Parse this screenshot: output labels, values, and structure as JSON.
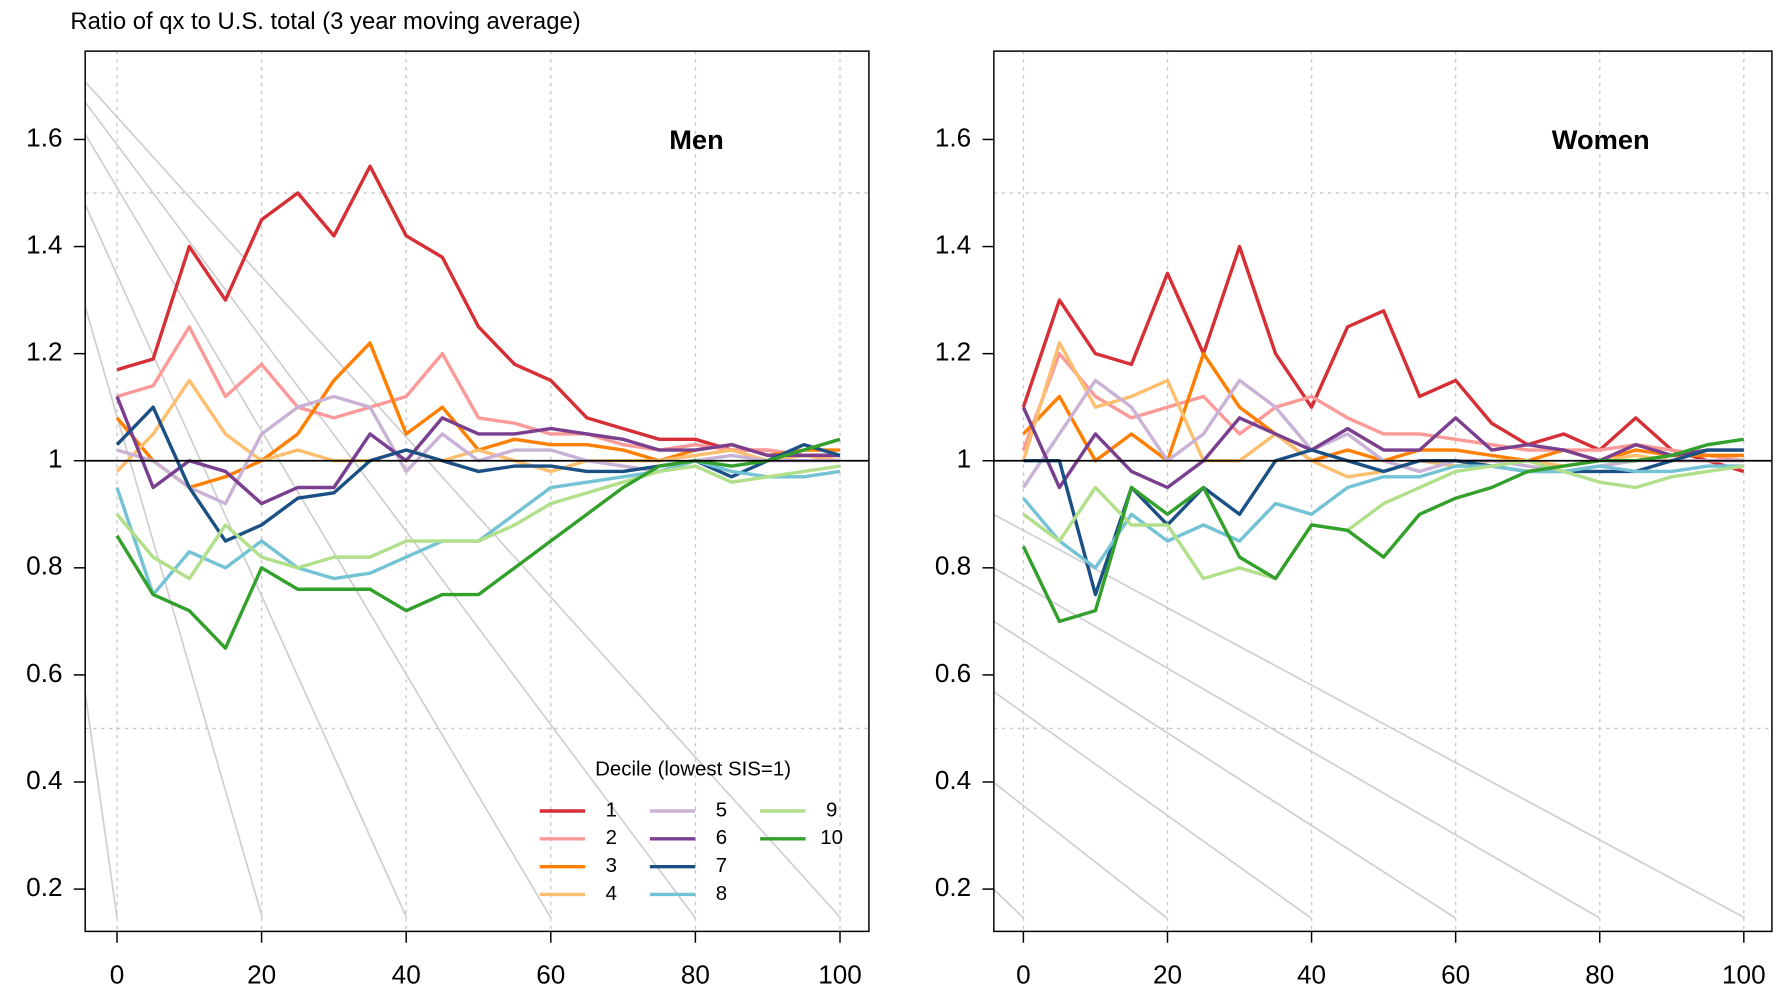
{
  "chart_data": [
    {
      "type": "line",
      "title": "Men",
      "y_label": "Ratio of qx to U.S. total (3 year moving average)",
      "legend": "bottom-right",
      "legend_title": "Decile (lowest SIS=1)",
      "xlim": [
        -4.4,
        104
      ],
      "ylim": [
        0.121,
        1.765
      ],
      "xticks": [
        0,
        20,
        40,
        60,
        80,
        100
      ],
      "yticks": [
        0.2,
        0.4,
        0.6,
        0.8,
        1,
        1.2,
        1.4,
        1.6
      ],
      "grid_x": true,
      "grid_y": [
        0.5,
        1,
        1.5
      ],
      "reference_line": 1,
      "x": [
        0,
        5,
        10,
        15,
        20,
        25,
        30,
        35,
        40,
        45,
        50,
        55,
        60,
        65,
        70,
        75,
        80,
        85,
        90,
        95,
        100
      ],
      "series": [
        {
          "name": "1",
          "color": "#d62f36",
          "values": [
            1.17,
            1.19,
            1.4,
            1.3,
            1.45,
            1.5,
            1.42,
            1.55,
            1.42,
            1.38,
            1.25,
            1.18,
            1.15,
            1.08,
            1.06,
            1.04,
            1.04,
            1.02,
            1.02,
            1.01,
            1.01
          ]
        },
        {
          "name": "2",
          "color": "#fb9a99",
          "values": [
            1.12,
            1.14,
            1.25,
            1.12,
            1.18,
            1.1,
            1.08,
            1.1,
            1.12,
            1.2,
            1.08,
            1.07,
            1.05,
            1.05,
            1.03,
            1.02,
            1.03,
            1.02,
            1.02,
            1.01,
            1.01
          ]
        },
        {
          "name": "3",
          "color": "#ff7f00",
          "values": [
            1.08,
            1.0,
            0.95,
            0.97,
            1.0,
            1.05,
            1.15,
            1.22,
            1.05,
            1.1,
            1.02,
            1.04,
            1.03,
            1.03,
            1.02,
            1.0,
            1.02,
            1.03,
            1.01,
            1.02,
            1.02
          ]
        },
        {
          "name": "4",
          "color": "#fdbf6f",
          "values": [
            0.98,
            1.05,
            1.15,
            1.05,
            1.0,
            1.02,
            1.0,
            1.0,
            1.02,
            1.0,
            1.02,
            1.0,
            0.98,
            1.0,
            1.0,
            1.0,
            1.01,
            1.02,
            1.0,
            1.01,
            1.0
          ]
        },
        {
          "name": "5",
          "color": "#cab2d6",
          "values": [
            1.02,
            1.0,
            0.95,
            0.92,
            1.05,
            1.1,
            1.12,
            1.1,
            0.98,
            1.05,
            1.0,
            1.02,
            1.02,
            1.0,
            0.99,
            0.98,
            1.0,
            1.01,
            1.0,
            1.0,
            1.0
          ]
        },
        {
          "name": "6",
          "color": "#7b3f8f",
          "values": [
            1.12,
            0.95,
            1.0,
            0.98,
            0.92,
            0.95,
            0.95,
            1.05,
            1.0,
            1.08,
            1.05,
            1.05,
            1.06,
            1.05,
            1.04,
            1.02,
            1.02,
            1.03,
            1.01,
            1.01,
            1.01
          ]
        },
        {
          "name": "7",
          "color": "#1b5085",
          "values": [
            1.03,
            1.1,
            0.95,
            0.85,
            0.88,
            0.93,
            0.94,
            1.0,
            1.02,
            1.0,
            0.98,
            0.99,
            0.99,
            0.98,
            0.98,
            0.99,
            1.0,
            0.97,
            1.0,
            1.03,
            1.01
          ]
        },
        {
          "name": "8",
          "color": "#74c3d5",
          "values": [
            0.95,
            0.75,
            0.83,
            0.8,
            0.85,
            0.8,
            0.78,
            0.79,
            0.82,
            0.85,
            0.85,
            0.9,
            0.95,
            0.96,
            0.97,
            0.98,
            1.0,
            0.98,
            0.97,
            0.97,
            0.98
          ]
        },
        {
          "name": "9",
          "color": "#b2df8a",
          "values": [
            0.9,
            0.82,
            0.78,
            0.88,
            0.82,
            0.8,
            0.82,
            0.82,
            0.85,
            0.85,
            0.85,
            0.88,
            0.92,
            0.94,
            0.96,
            0.98,
            0.99,
            0.96,
            0.97,
            0.98,
            0.99
          ]
        },
        {
          "name": "10",
          "color": "#33a02c",
          "values": [
            0.86,
            0.75,
            0.72,
            0.65,
            0.8,
            0.76,
            0.76,
            0.76,
            0.72,
            0.75,
            0.75,
            0.8,
            0.85,
            0.9,
            0.95,
            0.99,
            1.0,
            0.99,
            1.0,
            1.02,
            1.04
          ]
        }
      ]
    },
    {
      "type": "line",
      "title": "Women",
      "xlim": [
        -4.1,
        103.9
      ],
      "ylim": [
        0.121,
        1.765
      ],
      "xticks": [
        0,
        20,
        40,
        60,
        80,
        100
      ],
      "yticks": [
        0.2,
        0.4,
        0.6,
        0.8,
        1,
        1.2,
        1.4,
        1.6
      ],
      "grid_x": true,
      "grid_y": [
        0.5,
        1,
        1.5
      ],
      "reference_line": 1,
      "x": [
        0,
        5,
        10,
        15,
        20,
        25,
        30,
        35,
        40,
        45,
        50,
        55,
        60,
        65,
        70,
        75,
        80,
        85,
        90,
        95,
        100
      ],
      "series": [
        {
          "color": "#d62f36",
          "values": [
            1.1,
            1.3,
            1.2,
            1.18,
            1.35,
            1.2,
            1.4,
            1.2,
            1.1,
            1.25,
            1.28,
            1.12,
            1.15,
            1.07,
            1.03,
            1.05,
            1.02,
            1.08,
            1.02,
            1.0,
            0.98
          ]
        },
        {
          "color": "#fb9a99",
          "values": [
            1.02,
            1.2,
            1.12,
            1.08,
            1.1,
            1.12,
            1.05,
            1.1,
            1.12,
            1.08,
            1.05,
            1.05,
            1.04,
            1.03,
            1.02,
            1.02,
            1.02,
            1.03,
            1.02,
            1.01,
            1.0
          ]
        },
        {
          "color": "#ff7f00",
          "values": [
            1.05,
            1.12,
            1.0,
            1.05,
            1.0,
            1.2,
            1.1,
            1.05,
            1.0,
            1.02,
            1.0,
            1.02,
            1.02,
            1.01,
            1.0,
            1.02,
            1.0,
            1.02,
            1.01,
            1.01,
            1.01
          ]
        },
        {
          "color": "#fdbf6f",
          "values": [
            1.0,
            1.22,
            1.1,
            1.12,
            1.15,
            1.0,
            1.0,
            1.05,
            1.0,
            0.97,
            0.98,
            1.0,
            0.99,
            1.0,
            1.0,
            0.99,
            1.0,
            1.01,
            1.0,
            1.0,
            1.0
          ]
        },
        {
          "color": "#cab2d6",
          "values": [
            0.95,
            1.05,
            1.15,
            1.1,
            1.0,
            1.05,
            1.15,
            1.1,
            1.02,
            1.05,
            1.0,
            0.98,
            1.0,
            1.0,
            0.99,
            0.98,
            0.99,
            1.0,
            1.0,
            1.0,
            1.0
          ]
        },
        {
          "color": "#7b3f8f",
          "values": [
            1.1,
            0.95,
            1.05,
            0.98,
            0.95,
            1.0,
            1.08,
            1.05,
            1.02,
            1.06,
            1.02,
            1.02,
            1.08,
            1.02,
            1.03,
            1.02,
            1.0,
            1.03,
            1.01,
            1.02,
            1.02
          ]
        },
        {
          "color": "#1b5085",
          "values": [
            1.0,
            1.0,
            0.75,
            0.95,
            0.88,
            0.95,
            0.9,
            1.0,
            1.02,
            1.0,
            0.98,
            1.0,
            1.0,
            0.99,
            0.98,
            0.98,
            0.98,
            0.98,
            1.0,
            1.02,
            1.02
          ]
        },
        {
          "color": "#74c3d5",
          "values": [
            0.93,
            0.85,
            0.8,
            0.9,
            0.85,
            0.88,
            0.85,
            0.92,
            0.9,
            0.95,
            0.97,
            0.97,
            0.99,
            0.99,
            0.98,
            0.98,
            0.99,
            0.98,
            0.98,
            0.99,
            0.99
          ]
        },
        {
          "color": "#b2df8a",
          "values": [
            0.9,
            0.85,
            0.95,
            0.88,
            0.88,
            0.78,
            0.8,
            0.78,
            0.88,
            0.87,
            0.92,
            0.95,
            0.98,
            0.99,
            1.0,
            0.98,
            0.96,
            0.95,
            0.97,
            0.98,
            0.99
          ]
        },
        {
          "color": "#33a02c",
          "values": [
            0.84,
            0.7,
            0.72,
            0.95,
            0.9,
            0.95,
            0.82,
            0.78,
            0.88,
            0.87,
            0.82,
            0.9,
            0.93,
            0.95,
            0.98,
            0.99,
            1.0,
            1.0,
            1.01,
            1.03,
            1.04
          ]
        }
      ]
    }
  ]
}
